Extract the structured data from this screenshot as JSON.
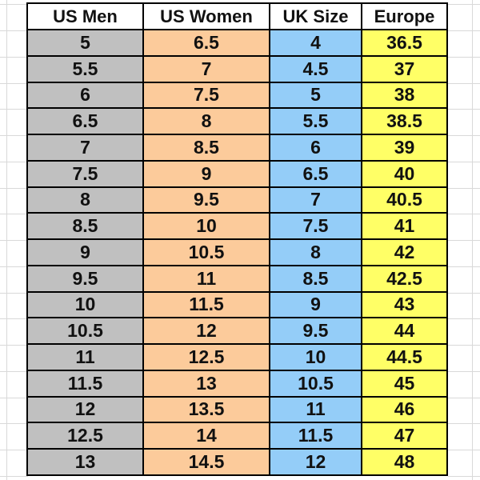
{
  "table": {
    "headers": [
      "US Men",
      "US Women",
      "UK Size",
      "Europe"
    ],
    "rows": [
      [
        "5",
        "6.5",
        "4",
        "36.5"
      ],
      [
        "5.5",
        "7",
        "4.5",
        "37"
      ],
      [
        "6",
        "7.5",
        "5",
        "38"
      ],
      [
        "6.5",
        "8",
        "5.5",
        "38.5"
      ],
      [
        "7",
        "8.5",
        "6",
        "39"
      ],
      [
        "7.5",
        "9",
        "6.5",
        "40"
      ],
      [
        "8",
        "9.5",
        "7",
        "40.5"
      ],
      [
        "8.5",
        "10",
        "7.5",
        "41"
      ],
      [
        "9",
        "10.5",
        "8",
        "42"
      ],
      [
        "9.5",
        "11",
        "8.5",
        "42.5"
      ],
      [
        "10",
        "11.5",
        "9",
        "43"
      ],
      [
        "10.5",
        "12",
        "9.5",
        "44"
      ],
      [
        "11",
        "12.5",
        "10",
        "44.5"
      ],
      [
        "11.5",
        "13",
        "10.5",
        "45"
      ],
      [
        "12",
        "13.5",
        "11",
        "46"
      ],
      [
        "12.5",
        "14",
        "11.5",
        "47"
      ],
      [
        "13",
        "14.5",
        "12",
        "48"
      ]
    ]
  }
}
